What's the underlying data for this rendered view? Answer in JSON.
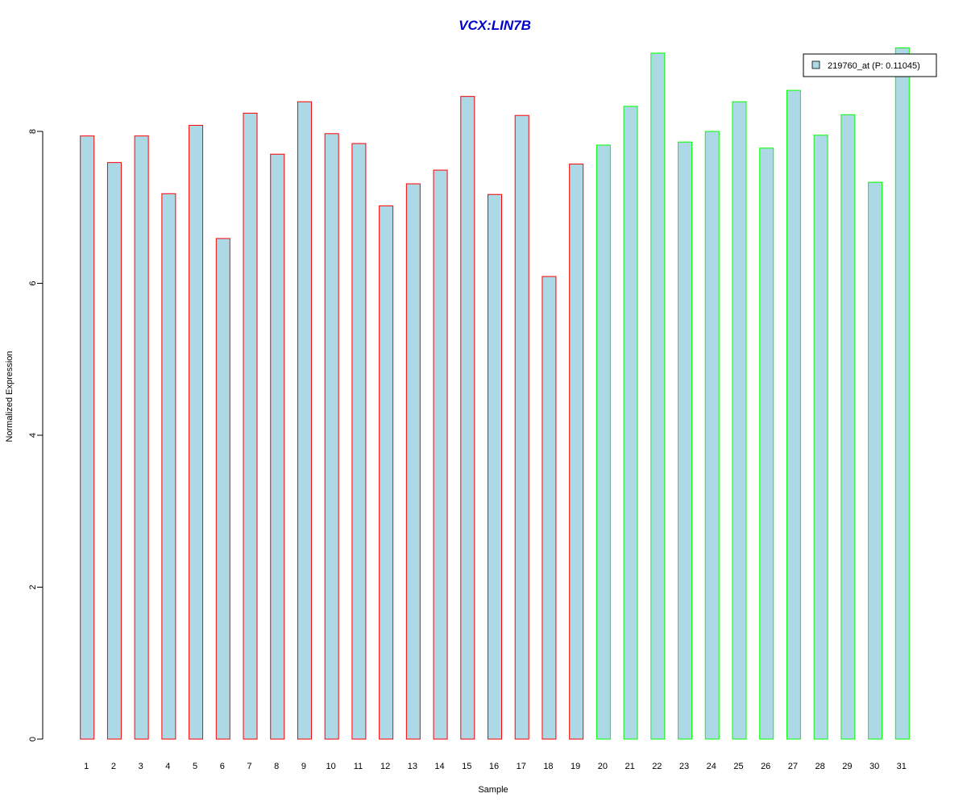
{
  "chart_data": {
    "type": "bar",
    "title": "VCX:LIN7B",
    "xlabel": "Sample",
    "ylabel": "Normalized Expression",
    "categories": [
      "1",
      "2",
      "3",
      "4",
      "5",
      "6",
      "7",
      "8",
      "9",
      "10",
      "11",
      "12",
      "13",
      "14",
      "15",
      "16",
      "17",
      "18",
      "19",
      "20",
      "21",
      "22",
      "23",
      "24",
      "25",
      "26",
      "27",
      "28",
      "29",
      "30",
      "31"
    ],
    "series": [
      {
        "name": "219760_at (P: 0.11045)",
        "values": [
          7.94,
          7.59,
          7.94,
          7.18,
          8.08,
          6.59,
          8.24,
          7.7,
          8.39,
          7.97,
          7.84,
          7.02,
          7.31,
          7.49,
          8.46,
          7.17,
          8.21,
          6.09,
          7.57,
          7.82,
          8.33,
          9.03,
          7.86,
          8.0,
          8.39,
          7.78,
          8.54,
          7.95,
          8.22,
          7.33,
          9.1
        ]
      }
    ],
    "groups": [
      {
        "first_index": 0,
        "last_index": 18,
        "border_color": "#ff0000"
      },
      {
        "first_index": 19,
        "last_index": 30,
        "border_color": "#00ff00"
      }
    ],
    "bar_fill_color": "#add8e6",
    "title_color": "#0000cd",
    "y_ticks": [
      0,
      2,
      4,
      6,
      8
    ],
    "ylim": [
      0,
      9.1
    ],
    "grid": false,
    "legend_position": "top-right"
  }
}
